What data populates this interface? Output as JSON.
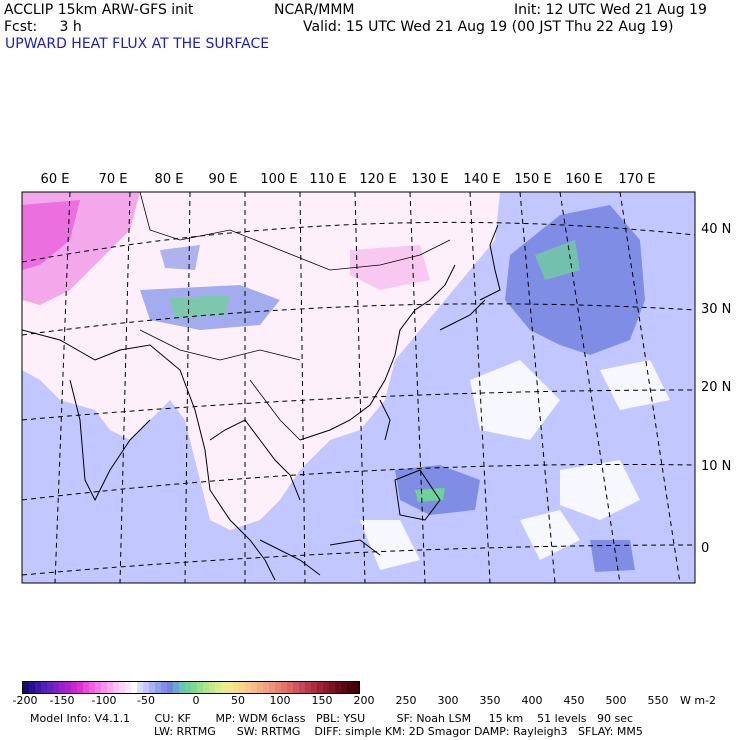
{
  "header": {
    "model": "ACCLIP 15km ARW-GFS init",
    "org": "NCAR/MMM",
    "init": "Init: 12 UTC Wed 21 Aug 19",
    "fcst": "Fcst:     3 h",
    "valid": "Valid: 15 UTC Wed 21 Aug 19 (00 JST Thu 22 Aug 19)",
    "field_title": "UPWARD HEAT FLUX AT THE SURFACE"
  },
  "map": {
    "lon_labels": [
      "60 E",
      "70 E",
      "80 E",
      "90 E",
      "100 E",
      "110 E",
      "120 E",
      "130 E",
      "140 E",
      "150 E",
      "160 E",
      "170 E"
    ],
    "lat_labels": [
      "40 N",
      "30 N",
      "20 N",
      "10 N",
      "0"
    ]
  },
  "colorbar": {
    "tick_labels": [
      "-200",
      "-150",
      "-100",
      "-50",
      "0",
      "50",
      "100",
      "150",
      "200",
      "250",
      "300",
      "350",
      "400",
      "450",
      "500",
      "550"
    ],
    "unit": "W m-2",
    "colors": [
      "#1a0a6e",
      "#2a1090",
      "#3a18a8",
      "#5020b8",
      "#6a20c0",
      "#8020c8",
      "#9a20cc",
      "#b020d0",
      "#c828d0",
      "#dc30d0",
      "#ec48dc",
      "#f060e0",
      "#f478e6",
      "#f890ea",
      "#faa8ee",
      "#fcc0f2",
      "#fdd4f6",
      "#fee6fa",
      "#ffffff",
      "#d8dcff",
      "#c2c8ff",
      "#aab2f4",
      "#94a0ec",
      "#8090e4",
      "#7088d8",
      "#68a8d0",
      "#68c4b4",
      "#70d09c",
      "#80d890",
      "#98e088",
      "#b0e488",
      "#c8e888",
      "#dcec88",
      "#eaee88",
      "#f2ea88",
      "#f6e08a",
      "#f8d48c",
      "#f8c88c",
      "#f6bc8a",
      "#f4ae86",
      "#f2a080",
      "#ee927a",
      "#ea8472",
      "#e4746a",
      "#dc6462",
      "#d0565a",
      "#c44852",
      "#b83a4a",
      "#aa2e40",
      "#9a2436",
      "#8a1a2c",
      "#7a1222",
      "#6a0c1a",
      "#5a0812",
      "#4a040c",
      "#3e0208"
    ]
  },
  "footer": {
    "line1": "Model Info: V4.1.1       CU: KF       MP: WDM 6class   PBL: YSU         SF: Noah LSM     15 km    51 levels   90 sec",
    "line2": "LW: RRTMG      SW: RRTMG    DIFF: simple KM: 2D Smagor DAMP: Rayleigh3   SFLAY: MM5"
  }
}
